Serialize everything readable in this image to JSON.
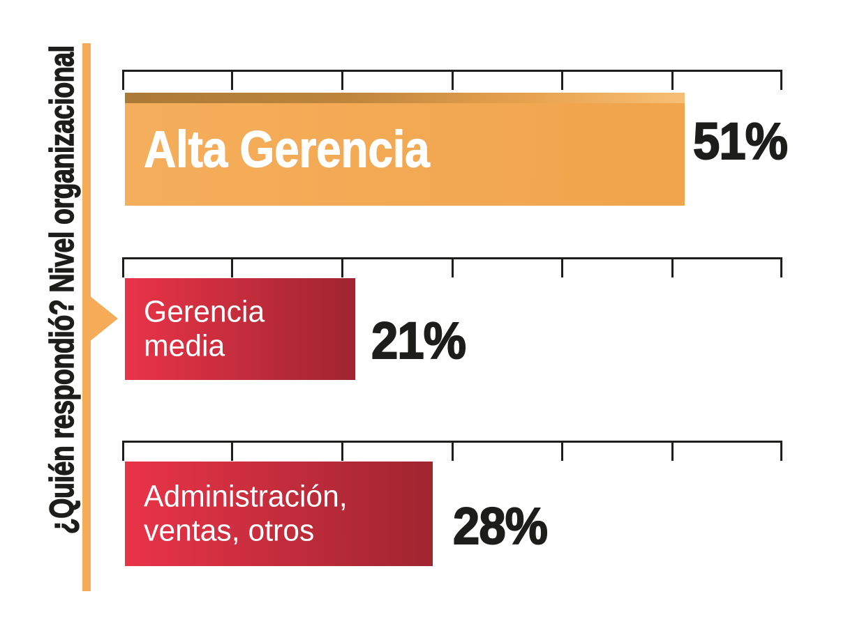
{
  "chart_data": {
    "type": "bar",
    "orientation": "horizontal",
    "title": "¿Quién respondió? Nivel organizacional",
    "categories": [
      "Alta Gerencia",
      "Gerencia media",
      "Administración, ventas, otros"
    ],
    "values": [
      51,
      21,
      28
    ],
    "value_labels": [
      "51%",
      "21%",
      "28%"
    ],
    "label_lines": [
      [
        "Alta Gerencia"
      ],
      [
        "Gerencia",
        "media"
      ],
      [
        "Administración,",
        "ventas, otros"
      ]
    ],
    "xlim": [
      0,
      60
    ],
    "tick_interval": 10,
    "tick_count": 7,
    "grid": false,
    "legend": false,
    "bar_palette": [
      "orange",
      "red",
      "red"
    ],
    "xlabel": "",
    "ylabel": "¿Quién respondió? Nivel organizacional"
  },
  "colors": {
    "orange": "#F0A44B",
    "orange-light": "#F5AE5C",
    "red-bright": "#E93448",
    "red-dark": "#9F2530",
    "stripe": "#F5AB57",
    "ink": "#1D1D1B",
    "bg": "#FFFFFF"
  }
}
